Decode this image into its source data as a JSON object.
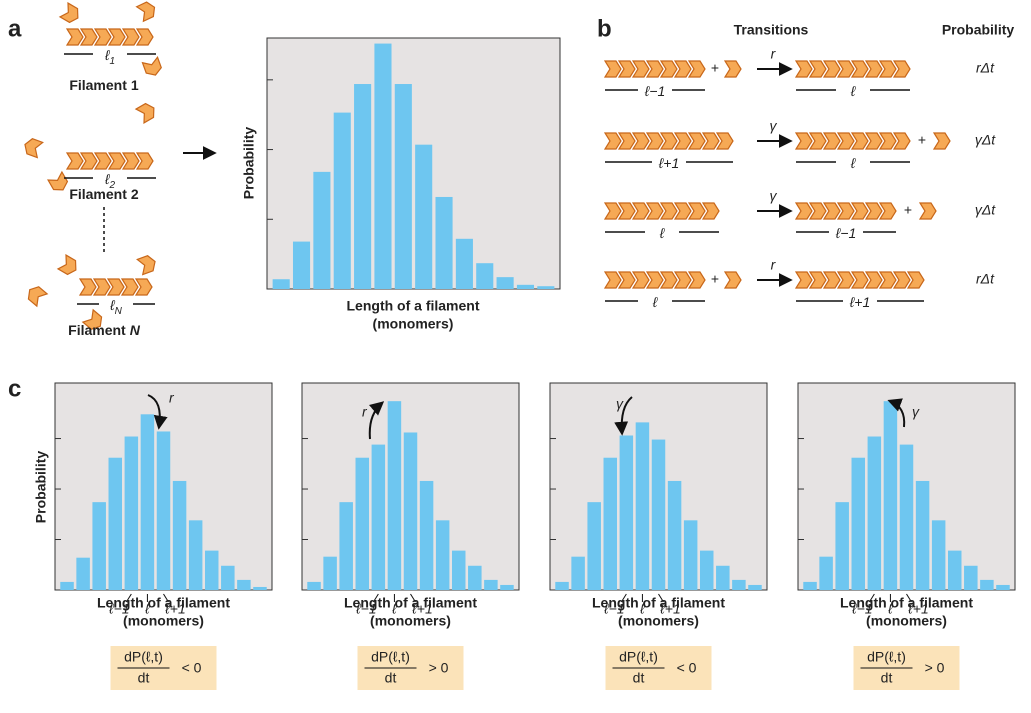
{
  "panel_labels": [
    "a",
    "b",
    "c"
  ],
  "panel_a": {
    "filaments": [
      {
        "name": "Filament",
        "index": "1",
        "length": "ℓ",
        "length_index": "1"
      },
      {
        "name": "Filament",
        "index": "2",
        "length": "ℓ",
        "length_index": "2"
      },
      {
        "name": "Filament",
        "index": "N",
        "length": "ℓ",
        "length_index": "N"
      }
    ]
  },
  "panel_b": {
    "headers": [
      "Transitions",
      "Probability"
    ],
    "plus": "+",
    "rows": [
      {
        "left_length": "ℓ−1",
        "rate": "r",
        "right_length": "ℓ",
        "probability": "rΔt"
      },
      {
        "left_length": "ℓ+1",
        "rate": "γ",
        "right_length": "ℓ",
        "probability": "γΔt"
      },
      {
        "left_length": "ℓ",
        "rate": "γ",
        "right_length": "ℓ−1",
        "probability": "γΔt"
      },
      {
        "left_length": "ℓ",
        "rate": "r",
        "right_length": "ℓ+1",
        "probability": "rΔt"
      }
    ]
  },
  "chart_data": [
    {
      "type": "bar",
      "ylabel": "Probability",
      "xlabel": "Length of a filament",
      "xlabel_unit": "(monomers)",
      "color": "#6ec6f0",
      "background": "#e6e3e3",
      "categories": [
        null,
        null,
        null,
        null,
        null,
        null,
        null,
        null,
        null,
        null,
        null,
        null,
        null,
        null
      ],
      "values": [
        0.14,
        0.68,
        1.68,
        2.53,
        2.94,
        3.52,
        2.94,
        2.07,
        1.32,
        0.72,
        0.37,
        0.17,
        0.06,
        0.04
      ],
      "ylim": [
        0,
        3.6
      ],
      "yticks": [
        1,
        2,
        3
      ]
    },
    {
      "type": "bar",
      "ylabel": "Probability",
      "xlabel": "Length of a filament",
      "xlabel_unit": "(monomers)",
      "color": "#6ec6f0",
      "background": "#e6e3e3",
      "categories": [
        null,
        null,
        null,
        null,
        "ℓ−1",
        "ℓ",
        "ℓ+1",
        null,
        null,
        null,
        null,
        null,
        null
      ],
      "values": [
        0.16,
        0.64,
        1.74,
        2.62,
        3.04,
        3.48,
        3.14,
        2.16,
        1.38,
        0.78,
        0.48,
        0.2,
        0.06
      ],
      "ylim": [
        0,
        4.1
      ],
      "yticks": [
        1,
        2,
        3
      ],
      "annotation": "r",
      "formula": {
        "numerator": "dP(ℓ,t)",
        "denominator": "dt",
        "relation": "< 0"
      }
    },
    {
      "type": "bar",
      "xlabel": "Length of a filament",
      "xlabel_unit": "(monomers)",
      "color": "#6ec6f0",
      "background": "#e6e3e3",
      "categories": [
        null,
        null,
        null,
        null,
        "ℓ−1",
        "ℓ",
        "ℓ+1",
        null,
        null,
        null,
        null,
        null,
        null
      ],
      "values": [
        0.16,
        0.66,
        1.74,
        2.62,
        2.88,
        3.74,
        3.12,
        2.16,
        1.38,
        0.78,
        0.48,
        0.2,
        0.1
      ],
      "ylim": [
        0,
        4.1
      ],
      "yticks": [
        1,
        2,
        3
      ],
      "annotation": "r",
      "formula": {
        "numerator": "dP(ℓ,t)",
        "denominator": "dt",
        "relation": "> 0"
      }
    },
    {
      "type": "bar",
      "xlabel": "Length of a filament",
      "xlabel_unit": "(monomers)",
      "color": "#6ec6f0",
      "background": "#e6e3e3",
      "categories": [
        null,
        null,
        null,
        null,
        "ℓ−1",
        "ℓ",
        "ℓ+1",
        null,
        null,
        null,
        null,
        null,
        null
      ],
      "values": [
        0.16,
        0.66,
        1.74,
        2.62,
        3.06,
        3.32,
        2.98,
        2.16,
        1.38,
        0.78,
        0.48,
        0.2,
        0.1
      ],
      "ylim": [
        0,
        4.1
      ],
      "yticks": [
        1,
        2,
        3
      ],
      "annotation": "γ",
      "formula": {
        "numerator": "dP(ℓ,t)",
        "denominator": "dt",
        "relation": "< 0"
      }
    },
    {
      "type": "bar",
      "xlabel": "Length of a filament",
      "xlabel_unit": "(monomers)",
      "color": "#6ec6f0",
      "background": "#e6e3e3",
      "categories": [
        null,
        null,
        null,
        null,
        "ℓ−1",
        "ℓ",
        "ℓ+1",
        null,
        null,
        null,
        null,
        null,
        null
      ],
      "values": [
        0.16,
        0.66,
        1.74,
        2.62,
        3.04,
        3.74,
        2.88,
        2.16,
        1.38,
        0.78,
        0.48,
        0.2,
        0.1
      ],
      "ylim": [
        0,
        4.1
      ],
      "yticks": [
        1,
        2,
        3
      ],
      "annotation": "γ",
      "formula": {
        "numerator": "dP(ℓ,t)",
        "denominator": "dt",
        "relation": "> 0"
      }
    }
  ]
}
